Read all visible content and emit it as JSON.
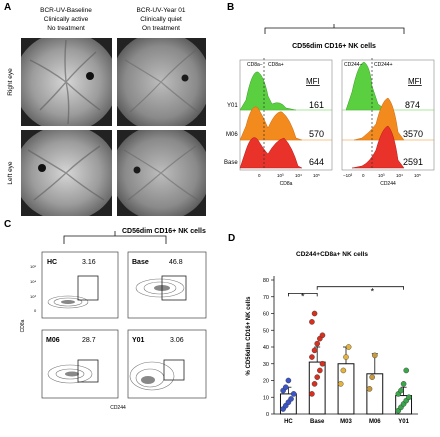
{
  "panel_letters": [
    "A",
    "B",
    "C",
    "D"
  ],
  "panel_a": {
    "col1_lines": [
      "BCR-UV-Baseline",
      "Clinically active",
      "No treatment"
    ],
    "col2_lines": [
      "BCR-UV-Year 01",
      "Clinically quiet",
      "On treatment"
    ],
    "row_labels": [
      "Right eye",
      "Left eye"
    ]
  },
  "panel_b": {
    "gate_title": "CD56dim CD16+ NK cells",
    "left": {
      "neg_label": "CD8a−",
      "pos_label": "CD8a+",
      "mfi_header": "MFI",
      "x_axis": "CD8a",
      "rows": [
        {
          "name": "Y01",
          "mfi": "161",
          "color": "#5ad040"
        },
        {
          "name": "M06",
          "mfi": "570",
          "color": "#f28a1e"
        },
        {
          "name": "Base",
          "mfi": "644",
          "color": "#e8322a"
        }
      ],
      "ticks": [
        "0",
        "10³",
        "10⁴",
        "10⁵"
      ]
    },
    "right": {
      "neg_label": "CD244−",
      "pos_label": "CD244+",
      "mfi_header": "MFI",
      "x_axis": "CD244",
      "mfi_values": [
        "874",
        "3570",
        "2591"
      ],
      "ticks": [
        "−10³",
        "0",
        "10³",
        "10⁴",
        "10⁵"
      ]
    }
  },
  "panel_c": {
    "gate_title": "CD56dim CD16+ NK cells",
    "y_axis": "CD8a",
    "x_axis": "CD244",
    "plots": [
      {
        "name": "HC",
        "pct": "3.16"
      },
      {
        "name": "Base",
        "pct": "46.8"
      },
      {
        "name": "M06",
        "pct": "28.7"
      },
      {
        "name": "Y01",
        "pct": "3.06"
      }
    ],
    "y_ticks": [
      "10⁵",
      "10⁴",
      "10³",
      "0"
    ]
  },
  "chart_data": {
    "type": "bar",
    "title": "CD244+CD8a+ NK cells",
    "ylabel": "% CD56dim CD16+ NK cells",
    "xlabel": "",
    "categories": [
      "HC",
      "Base",
      "M03",
      "M06",
      "Y01"
    ],
    "values": [
      12,
      31,
      30,
      24,
      11
    ],
    "errors": [
      4,
      9,
      10,
      12,
      5
    ],
    "ylim": [
      0,
      80
    ],
    "yticks": [
      0,
      10,
      20,
      30,
      40,
      50,
      60,
      70,
      80
    ],
    "colors": [
      "#3b55c8",
      "#d63020",
      "#e5b23c",
      "#c99a3c",
      "#3aa64a"
    ],
    "points": [
      [
        3,
        5,
        7,
        9,
        12,
        14,
        16,
        20
      ],
      [
        12,
        18,
        22,
        26,
        30,
        34,
        38,
        42,
        45,
        47,
        55,
        60
      ],
      [
        18,
        26,
        34,
        40
      ],
      [
        15,
        22,
        35
      ],
      [
        2,
        4,
        6,
        8,
        10,
        12,
        14,
        18,
        26
      ]
    ],
    "significance": [
      "*",
      "*"
    ]
  }
}
